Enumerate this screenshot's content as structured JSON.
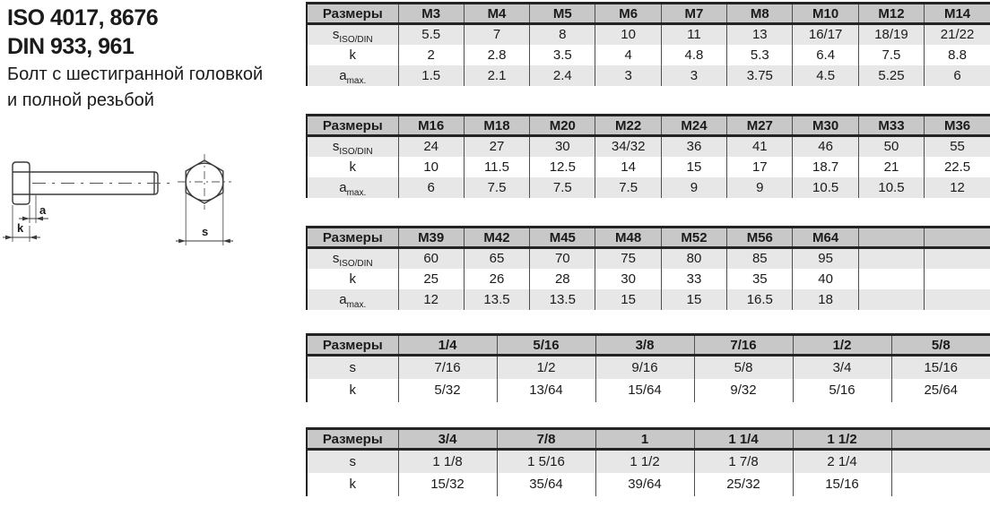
{
  "header": {
    "iso_title": "ISO 4017, 8676",
    "din_title": "DIN 933, 961",
    "description_line1": "Болт с шестигранной головкой",
    "description_line2": "и полной резьбой"
  },
  "drawing": {
    "label_a": "a",
    "label_k": "k",
    "label_s": "s"
  },
  "colors": {
    "header_bg": "#c8c8c8",
    "stripe_bg": "#e7e7e7",
    "border_dark": "#242424"
  },
  "tables": [
    {
      "header": [
        "Размеры",
        "M3",
        "M4",
        "M5",
        "M6",
        "M7",
        "M8",
        "M10",
        "M12",
        "M14"
      ],
      "rows": [
        {
          "label": "s",
          "sub": "ISO/DIN",
          "values": [
            "5.5",
            "7",
            "8",
            "10",
            "11",
            "13",
            "16/17",
            "18/19",
            "21/22"
          ]
        },
        {
          "label": "k",
          "sub": "",
          "values": [
            "2",
            "2.8",
            "3.5",
            "4",
            "4.8",
            "5.3",
            "6.4",
            "7.5",
            "8.8"
          ]
        },
        {
          "label": "a",
          "sub": "max.",
          "values": [
            "1.5",
            "2.1",
            "2.4",
            "3",
            "3",
            "3.75",
            "4.5",
            "5.25",
            "6"
          ]
        }
      ]
    },
    {
      "header": [
        "Размеры",
        "M16",
        "M18",
        "M20",
        "M22",
        "M24",
        "M27",
        "M30",
        "M33",
        "M36"
      ],
      "rows": [
        {
          "label": "s",
          "sub": "ISO/DIN",
          "values": [
            "24",
            "27",
            "30",
            "34/32",
            "36",
            "41",
            "46",
            "50",
            "55"
          ]
        },
        {
          "label": "k",
          "sub": "",
          "values": [
            "10",
            "11.5",
            "12.5",
            "14",
            "15",
            "17",
            "18.7",
            "21",
            "22.5"
          ]
        },
        {
          "label": "a",
          "sub": "max.",
          "values": [
            "6",
            "7.5",
            "7.5",
            "7.5",
            "9",
            "9",
            "10.5",
            "10.5",
            "12"
          ]
        }
      ]
    },
    {
      "header": [
        "Размеры",
        "M39",
        "M42",
        "M45",
        "M48",
        "M52",
        "M56",
        "M64",
        "",
        ""
      ],
      "rows": [
        {
          "label": "s",
          "sub": "ISO/DIN",
          "values": [
            "60",
            "65",
            "70",
            "75",
            "80",
            "85",
            "95",
            "",
            ""
          ]
        },
        {
          "label": "k",
          "sub": "",
          "values": [
            "25",
            "26",
            "28",
            "30",
            "33",
            "35",
            "40",
            "",
            ""
          ]
        },
        {
          "label": "a",
          "sub": "max.",
          "values": [
            "12",
            "13.5",
            "13.5",
            "15",
            "15",
            "16.5",
            "18",
            "",
            ""
          ]
        }
      ]
    },
    {
      "header": [
        "Размеры",
        "1/4",
        "5/16",
        "3/8",
        "7/16",
        "1/2",
        "5/8"
      ],
      "rows": [
        {
          "label": "s",
          "sub": "",
          "values": [
            "7/16",
            "1/2",
            "9/16",
            "5/8",
            "3/4",
            "15/16"
          ]
        },
        {
          "label": "k",
          "sub": "",
          "values": [
            "5/32",
            "13/64",
            "15/64",
            "9/32",
            "5/16",
            "25/64"
          ]
        }
      ]
    },
    {
      "header": [
        "Размеры",
        "3/4",
        "7/8",
        "1",
        "1 1/4",
        "1 1/2",
        ""
      ],
      "rows": [
        {
          "label": "s",
          "sub": "",
          "values": [
            "1 1/8",
            "1 5/16",
            "1 1/2",
            "1 7/8",
            "2 1/4",
            ""
          ]
        },
        {
          "label": "k",
          "sub": "",
          "values": [
            "15/32",
            "35/64",
            "39/64",
            "25/32",
            "15/16",
            ""
          ]
        }
      ]
    }
  ]
}
